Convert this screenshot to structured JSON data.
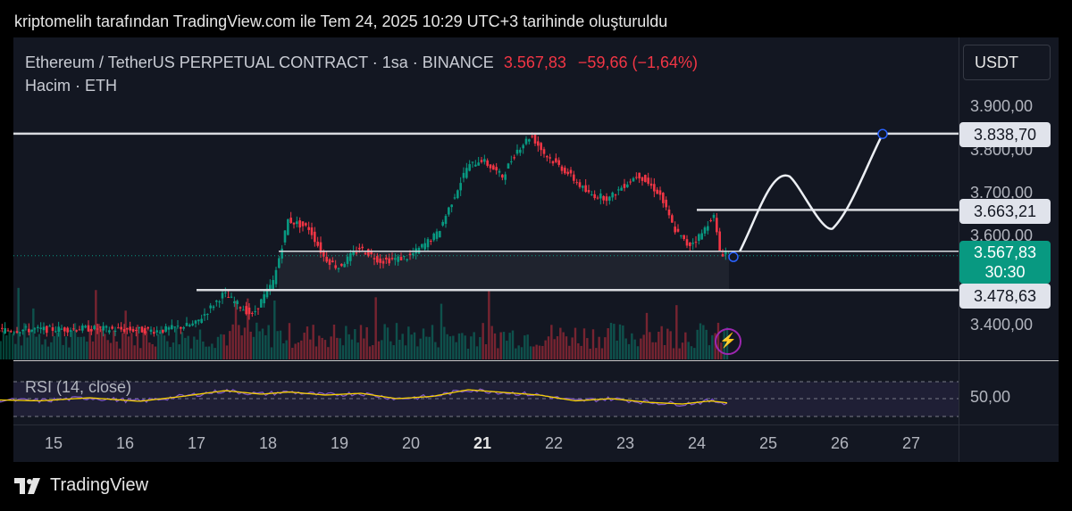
{
  "caption": "kriptomelih tarafından TradingView.com ile Tem 24, 2025 10:29 UTC+3 tarihinde oluşturuldu",
  "legend": {
    "symbol": "Ethereum / TetherUS PERPETUAL CONTRACT · 1sa · BINANCE",
    "price": "3.567,83",
    "change": "−59,66 (−1,64%)",
    "volume": "Hacim · ETH"
  },
  "currency_button": "USDT",
  "rsi_label": "RSI (14, close)",
  "brand": "TradingView",
  "colors": {
    "up": "#089981",
    "down": "#f23645",
    "rsi": "#7e57c2",
    "rsi_ma": "#f7d100",
    "background": "#131722"
  },
  "chart_data": {
    "type": "candlestick",
    "price_axis": {
      "ticks": [
        "3.900,00",
        "3.800,00",
        "3.700,00",
        "3.600,00",
        "3.400,00"
      ],
      "tick_values": [
        3900,
        3800,
        3700,
        3600,
        3400
      ]
    },
    "price_labels": [
      {
        "text": "3.838,70",
        "value": 3838.7,
        "kind": "level"
      },
      {
        "text": "3.663,21",
        "value": 3663.21,
        "kind": "level"
      },
      {
        "text": "3.567,83",
        "value": 3567.83,
        "kind": "last"
      },
      {
        "text": "3.478,63",
        "value": 3478.63,
        "kind": "level"
      }
    ],
    "countdown": "30:30",
    "x_axis": [
      "15",
      "16",
      "17",
      "18",
      "19",
      "20",
      "21",
      "22",
      "23",
      "24",
      "25",
      "26",
      "27"
    ],
    "x_axis_bold": "21",
    "rsi_axis": {
      "ticks": [
        "50,00"
      ],
      "tick_values": [
        50
      ]
    },
    "close_path": [
      [
        14.0,
        3385
      ],
      [
        15.5,
        3390
      ],
      [
        16.5,
        3385
      ],
      [
        17.0,
        3400
      ],
      [
        17.4,
        3470
      ],
      [
        17.8,
        3420
      ],
      [
        18.1,
        3500
      ],
      [
        18.3,
        3640
      ],
      [
        18.6,
        3620
      ],
      [
        18.8,
        3555
      ],
      [
        19.0,
        3530
      ],
      [
        19.3,
        3575
      ],
      [
        19.6,
        3545
      ],
      [
        20.0,
        3555
      ],
      [
        20.4,
        3610
      ],
      [
        20.8,
        3760
      ],
      [
        21.0,
        3780
      ],
      [
        21.3,
        3740
      ],
      [
        21.5,
        3800
      ],
      [
        21.7,
        3835
      ],
      [
        21.9,
        3790
      ],
      [
        22.2,
        3750
      ],
      [
        22.5,
        3700
      ],
      [
        22.8,
        3690
      ],
      [
        23.0,
        3720
      ],
      [
        23.2,
        3745
      ],
      [
        23.5,
        3700
      ],
      [
        23.7,
        3620
      ],
      [
        23.9,
        3580
      ],
      [
        24.1,
        3610
      ],
      [
        24.25,
        3655
      ],
      [
        24.35,
        3560
      ],
      [
        24.45,
        3567.83
      ]
    ],
    "levels": [
      3838.7,
      3663.21,
      3567.83,
      3478.63
    ],
    "projection": [
      [
        24.6,
        3567
      ],
      [
        25.3,
        3740
      ],
      [
        25.9,
        3620
      ],
      [
        26.6,
        3838
      ]
    ],
    "rsi": [
      [
        14.0,
        48
      ],
      [
        14.8,
        45
      ],
      [
        15.5,
        52
      ],
      [
        16.2,
        44
      ],
      [
        16.8,
        55
      ],
      [
        17.4,
        68
      ],
      [
        17.9,
        60
      ],
      [
        18.3,
        65
      ],
      [
        18.8,
        58
      ],
      [
        19.3,
        62
      ],
      [
        19.8,
        50
      ],
      [
        20.3,
        55
      ],
      [
        20.8,
        70
      ],
      [
        21.3,
        64
      ],
      [
        21.8,
        58
      ],
      [
        22.3,
        45
      ],
      [
        22.8,
        50
      ],
      [
        23.3,
        42
      ],
      [
        23.8,
        38
      ],
      [
        24.2,
        45
      ],
      [
        24.45,
        40
      ]
    ]
  }
}
